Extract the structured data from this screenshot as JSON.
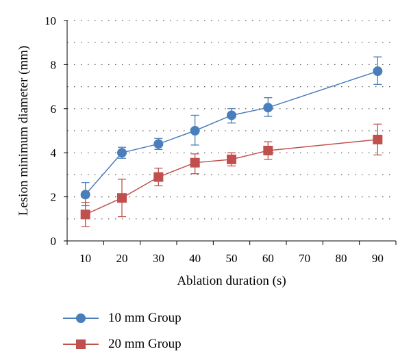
{
  "chart_data": {
    "type": "line",
    "xlabel": "Ablation duration (s)",
    "ylabel": "Lesion minimum diameter (mm)",
    "categories": [
      "10",
      "20",
      "30",
      "40",
      "50",
      "60",
      "70",
      "80",
      "90"
    ],
    "ylim": [
      0,
      10
    ],
    "yticks": [
      "0",
      "2",
      "4",
      "6",
      "8",
      "10"
    ],
    "grid": "horizontal dotted",
    "legend_position": "bottom",
    "series": [
      {
        "name": "10 mm Group",
        "color": "#4A7EBB",
        "marker": "circle",
        "x": [
          "10",
          "20",
          "30",
          "40",
          "50",
          "60",
          "90"
        ],
        "values": [
          2.1,
          4.0,
          4.4,
          5.0,
          5.7,
          6.05,
          7.7
        ],
        "err_low": [
          1.6,
          3.75,
          4.15,
          4.35,
          5.35,
          5.65,
          7.1
        ],
        "err_high": [
          2.65,
          4.25,
          4.65,
          5.7,
          6.0,
          6.5,
          8.35
        ]
      },
      {
        "name": "20 mm Group",
        "color": "#C0504D",
        "marker": "square",
        "x": [
          "10",
          "20",
          "30",
          "40",
          "50",
          "60",
          "90"
        ],
        "values": [
          1.2,
          1.95,
          2.9,
          3.55,
          3.7,
          4.1,
          4.6
        ],
        "err_low": [
          0.65,
          1.1,
          2.5,
          3.05,
          3.4,
          3.7,
          3.9
        ],
        "err_high": [
          1.75,
          2.8,
          3.3,
          3.95,
          4.0,
          4.5,
          5.3
        ]
      }
    ]
  }
}
